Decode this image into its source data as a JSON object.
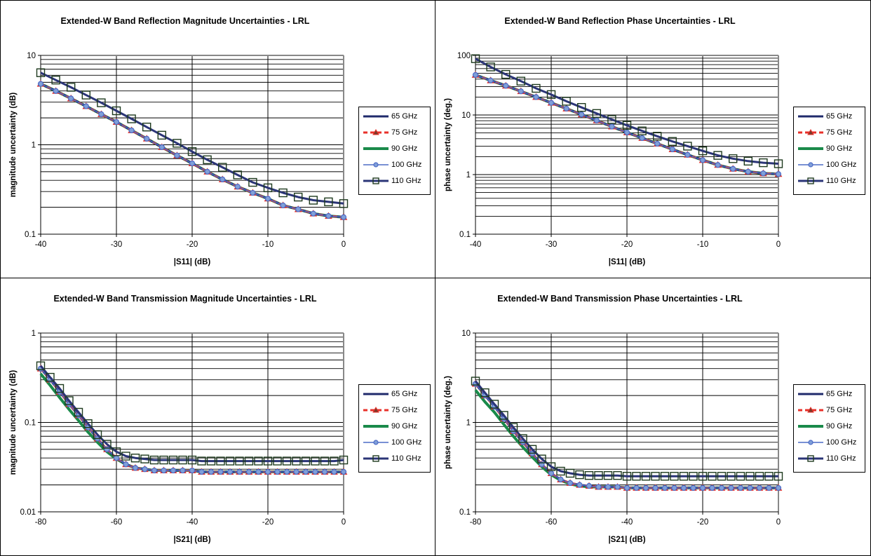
{
  "chart_data": [
    {
      "type": "line",
      "title": "Extended-W Band Reflection Magnitude Uncertainties - LRL",
      "xlabel": "|S11| (dB)",
      "ylabel": "magnitude uncertainty (dB)",
      "xlim": [
        -40,
        0
      ],
      "ylim": [
        0.1,
        10
      ],
      "yscale": "log",
      "xticks": [
        "-40",
        "-30",
        "-20",
        "-10",
        "0"
      ],
      "yticks": [
        "0.1",
        "1",
        "10"
      ],
      "grid": true,
      "legend": "right",
      "x": [
        -40,
        -38,
        -36,
        -34,
        -32,
        -30,
        -28,
        -26,
        -24,
        -22,
        -20,
        -18,
        -16,
        -14,
        -12,
        -10,
        -8,
        -6,
        -4,
        -2,
        0
      ],
      "series": [
        {
          "name": "65 GHz",
          "values": [
            4.8,
            4.0,
            3.3,
            2.7,
            2.2,
            1.8,
            1.45,
            1.17,
            0.94,
            0.76,
            0.62,
            0.5,
            0.41,
            0.34,
            0.29,
            0.25,
            0.21,
            0.19,
            0.17,
            0.16,
            0.155
          ]
        },
        {
          "name": "75 GHz",
          "values": [
            4.8,
            4.0,
            3.3,
            2.7,
            2.2,
            1.8,
            1.45,
            1.17,
            0.94,
            0.76,
            0.62,
            0.5,
            0.41,
            0.34,
            0.29,
            0.25,
            0.21,
            0.19,
            0.17,
            0.16,
            0.155
          ]
        },
        {
          "name": "90 GHz",
          "values": [
            4.8,
            4.0,
            3.3,
            2.7,
            2.2,
            1.8,
            1.45,
            1.17,
            0.94,
            0.76,
            0.62,
            0.5,
            0.41,
            0.34,
            0.29,
            0.25,
            0.21,
            0.19,
            0.17,
            0.16,
            0.155
          ]
        },
        {
          "name": "100 GHz",
          "values": [
            4.8,
            4.0,
            3.3,
            2.7,
            2.2,
            1.8,
            1.45,
            1.17,
            0.94,
            0.76,
            0.62,
            0.5,
            0.41,
            0.34,
            0.29,
            0.25,
            0.21,
            0.19,
            0.17,
            0.16,
            0.155
          ]
        },
        {
          "name": "110 GHz",
          "values": [
            6.4,
            5.3,
            4.4,
            3.6,
            2.95,
            2.4,
            1.95,
            1.58,
            1.28,
            1.04,
            0.84,
            0.68,
            0.56,
            0.46,
            0.38,
            0.33,
            0.29,
            0.26,
            0.24,
            0.23,
            0.22
          ]
        }
      ]
    },
    {
      "type": "line",
      "title": "Extended-W Band Reflection Phase Uncertainties - LRL",
      "xlabel": "|S11| (dB)",
      "ylabel": "phase uncertainty (deg.)",
      "xlim": [
        -40,
        0
      ],
      "ylim": [
        0.1,
        100
      ],
      "yscale": "log",
      "xticks": [
        "-40",
        "-30",
        "-20",
        "-10",
        "0"
      ],
      "yticks": [
        "0.1",
        "1",
        "10",
        "100"
      ],
      "grid": true,
      "legend": "right",
      "x": [
        -40,
        -38,
        -36,
        -34,
        -32,
        -30,
        -28,
        -26,
        -24,
        -22,
        -20,
        -18,
        -16,
        -14,
        -12,
        -10,
        -8,
        -6,
        -4,
        -2,
        0
      ],
      "series": [
        {
          "name": "65 GHz",
          "values": [
            47,
            38,
            31,
            25,
            20,
            16,
            12.8,
            10.2,
            8.1,
            6.4,
            5.1,
            4.1,
            3.3,
            2.65,
            2.15,
            1.75,
            1.45,
            1.25,
            1.12,
            1.05,
            1.02
          ]
        },
        {
          "name": "75 GHz",
          "values": [
            47,
            38,
            31,
            25,
            20,
            16,
            12.8,
            10.2,
            8.1,
            6.4,
            5.1,
            4.1,
            3.3,
            2.65,
            2.15,
            1.75,
            1.45,
            1.25,
            1.12,
            1.05,
            1.02
          ]
        },
        {
          "name": "90 GHz",
          "values": [
            47,
            38,
            31,
            25,
            20,
            16,
            12.8,
            10.2,
            8.1,
            6.4,
            5.1,
            4.1,
            3.3,
            2.65,
            2.15,
            1.75,
            1.45,
            1.25,
            1.12,
            1.05,
            1.02
          ]
        },
        {
          "name": "100 GHz",
          "values": [
            47,
            38,
            31,
            25,
            20,
            16,
            12.8,
            10.2,
            8.1,
            6.4,
            5.1,
            4.1,
            3.3,
            2.65,
            2.15,
            1.75,
            1.45,
            1.25,
            1.12,
            1.05,
            1.02
          ]
        },
        {
          "name": "110 GHz",
          "values": [
            88,
            64,
            48,
            37,
            28,
            22,
            17,
            13.4,
            10.6,
            8.4,
            6.7,
            5.4,
            4.4,
            3.6,
            3.0,
            2.5,
            2.1,
            1.85,
            1.68,
            1.58,
            1.52
          ]
        }
      ]
    },
    {
      "type": "line",
      "title": "Extended-W Band Transmission Magnitude Uncertainties - LRL",
      "xlabel": "|S21| (dB)",
      "ylabel": "magnitude uncertainty (dB)",
      "xlim": [
        -80,
        0
      ],
      "ylim": [
        0.01,
        1
      ],
      "yscale": "log",
      "xticks": [
        "-80",
        "-60",
        "-40",
        "-20",
        "0"
      ],
      "yticks": [
        "0.01",
        "0.1",
        "1"
      ],
      "grid": true,
      "legend": "right",
      "x": [
        -80,
        -77.5,
        -75,
        -72.5,
        -70,
        -67.5,
        -65,
        -62.5,
        -60,
        -57.5,
        -55,
        -52.5,
        -50,
        -47.5,
        -45,
        -42.5,
        -40,
        -37.5,
        -35,
        -32.5,
        -30,
        -27.5,
        -25,
        -22.5,
        -20,
        -17.5,
        -15,
        -12.5,
        -10,
        -7.5,
        -5,
        -2.5,
        0
      ],
      "series": [
        {
          "name": "65 GHz",
          "values": [
            0.4,
            0.3,
            0.22,
            0.16,
            0.12,
            0.088,
            0.066,
            0.05,
            0.04,
            0.034,
            0.031,
            0.03,
            0.029,
            0.029,
            0.029,
            0.029,
            0.029,
            0.028,
            0.028,
            0.028,
            0.028,
            0.028,
            0.028,
            0.028,
            0.028,
            0.028,
            0.028,
            0.028,
            0.028,
            0.028,
            0.028,
            0.028,
            0.028
          ]
        },
        {
          "name": "75 GHz",
          "values": [
            0.4,
            0.3,
            0.22,
            0.16,
            0.12,
            0.088,
            0.066,
            0.05,
            0.04,
            0.034,
            0.031,
            0.03,
            0.029,
            0.029,
            0.029,
            0.029,
            0.029,
            0.028,
            0.028,
            0.028,
            0.028,
            0.028,
            0.028,
            0.028,
            0.028,
            0.028,
            0.028,
            0.028,
            0.028,
            0.028,
            0.028,
            0.028,
            0.028
          ]
        },
        {
          "name": "90 GHz",
          "values": [
            0.35,
            0.26,
            0.19,
            0.14,
            0.105,
            0.078,
            0.06,
            0.047,
            0.039,
            0.034,
            0.031,
            0.03,
            0.029,
            0.029,
            0.029,
            0.029,
            0.029,
            0.028,
            0.028,
            0.028,
            0.028,
            0.028,
            0.028,
            0.028,
            0.028,
            0.028,
            0.028,
            0.028,
            0.028,
            0.028,
            0.028,
            0.028,
            0.028
          ]
        },
        {
          "name": "100 GHz",
          "values": [
            0.4,
            0.3,
            0.22,
            0.16,
            0.12,
            0.088,
            0.066,
            0.05,
            0.04,
            0.034,
            0.031,
            0.03,
            0.029,
            0.029,
            0.029,
            0.029,
            0.029,
            0.028,
            0.028,
            0.028,
            0.028,
            0.028,
            0.028,
            0.028,
            0.028,
            0.028,
            0.028,
            0.028,
            0.028,
            0.028,
            0.028,
            0.028,
            0.028
          ]
        },
        {
          "name": "110 GHz",
          "values": [
            0.43,
            0.32,
            0.24,
            0.175,
            0.13,
            0.097,
            0.073,
            0.057,
            0.047,
            0.042,
            0.04,
            0.039,
            0.038,
            0.038,
            0.038,
            0.038,
            0.038,
            0.037,
            0.037,
            0.037,
            0.037,
            0.037,
            0.037,
            0.037,
            0.037,
            0.037,
            0.037,
            0.037,
            0.037,
            0.037,
            0.037,
            0.037,
            0.038
          ]
        }
      ]
    },
    {
      "type": "line",
      "title": "Extended-W Band Transmission Phase Uncertainties - LRL",
      "xlabel": "|S21| (dB)",
      "ylabel": "phase uncertainty (deg.)",
      "xlim": [
        -80,
        0
      ],
      "ylim": [
        0.1,
        10
      ],
      "yscale": "log",
      "xticks": [
        "-80",
        "-60",
        "-40",
        "-20",
        "0"
      ],
      "yticks": [
        "0.1",
        "1",
        "10"
      ],
      "grid": true,
      "legend": "right",
      "x": [
        -80,
        -77.5,
        -75,
        -72.5,
        -70,
        -67.5,
        -65,
        -62.5,
        -60,
        -57.5,
        -55,
        -52.5,
        -50,
        -47.5,
        -45,
        -42.5,
        -40,
        -37.5,
        -35,
        -32.5,
        -30,
        -27.5,
        -25,
        -22.5,
        -20,
        -17.5,
        -15,
        -12.5,
        -10,
        -7.5,
        -5,
        -2.5,
        0
      ],
      "series": [
        {
          "name": "65 GHz",
          "values": [
            2.7,
            2.0,
            1.5,
            1.1,
            0.8,
            0.6,
            0.45,
            0.34,
            0.27,
            0.23,
            0.21,
            0.2,
            0.195,
            0.19,
            0.19,
            0.19,
            0.185,
            0.185,
            0.185,
            0.185,
            0.185,
            0.185,
            0.185,
            0.185,
            0.185,
            0.185,
            0.185,
            0.185,
            0.185,
            0.185,
            0.185,
            0.185,
            0.185
          ]
        },
        {
          "name": "75 GHz",
          "values": [
            2.7,
            2.0,
            1.5,
            1.1,
            0.8,
            0.6,
            0.45,
            0.34,
            0.27,
            0.23,
            0.21,
            0.2,
            0.195,
            0.19,
            0.19,
            0.19,
            0.185,
            0.185,
            0.185,
            0.185,
            0.185,
            0.185,
            0.185,
            0.185,
            0.185,
            0.185,
            0.185,
            0.185,
            0.185,
            0.185,
            0.185,
            0.185,
            0.185
          ]
        },
        {
          "name": "90 GHz",
          "values": [
            2.3,
            1.7,
            1.3,
            0.95,
            0.7,
            0.53,
            0.41,
            0.32,
            0.26,
            0.225,
            0.205,
            0.195,
            0.19,
            0.19,
            0.19,
            0.19,
            0.185,
            0.185,
            0.185,
            0.185,
            0.185,
            0.185,
            0.185,
            0.185,
            0.185,
            0.185,
            0.185,
            0.185,
            0.185,
            0.185,
            0.185,
            0.185,
            0.185
          ]
        },
        {
          "name": "100 GHz",
          "values": [
            2.7,
            2.0,
            1.5,
            1.1,
            0.8,
            0.6,
            0.45,
            0.34,
            0.27,
            0.23,
            0.21,
            0.2,
            0.195,
            0.19,
            0.19,
            0.19,
            0.185,
            0.185,
            0.185,
            0.185,
            0.185,
            0.185,
            0.185,
            0.185,
            0.185,
            0.185,
            0.185,
            0.185,
            0.185,
            0.185,
            0.185,
            0.185,
            0.185
          ]
        },
        {
          "name": "110 GHz",
          "values": [
            2.9,
            2.15,
            1.6,
            1.2,
            0.88,
            0.66,
            0.5,
            0.39,
            0.32,
            0.285,
            0.27,
            0.26,
            0.255,
            0.255,
            0.255,
            0.255,
            0.25,
            0.25,
            0.25,
            0.25,
            0.25,
            0.25,
            0.25,
            0.25,
            0.25,
            0.25,
            0.25,
            0.25,
            0.25,
            0.25,
            0.25,
            0.25,
            0.25
          ]
        }
      ]
    }
  ],
  "styles": {
    "65 GHz": {
      "color": "#1f2a6b",
      "dash": "",
      "marker": "none",
      "width": 3
    },
    "75 GHz": {
      "color": "#e8312a",
      "dash": "6,4",
      "marker": "triangle",
      "width": 3
    },
    "90 GHz": {
      "color": "#1a8a4a",
      "dash": "",
      "marker": "none",
      "width": 4
    },
    "100 GHz": {
      "color": "#4d6bc6",
      "dash": "",
      "marker": "circle",
      "width": 1.5
    },
    "110 GHz": {
      "color": "#2b3577",
      "dash": "",
      "marker": "square",
      "width": 3
    }
  },
  "grid_color": "#000000",
  "plot_border_color": "#888888"
}
